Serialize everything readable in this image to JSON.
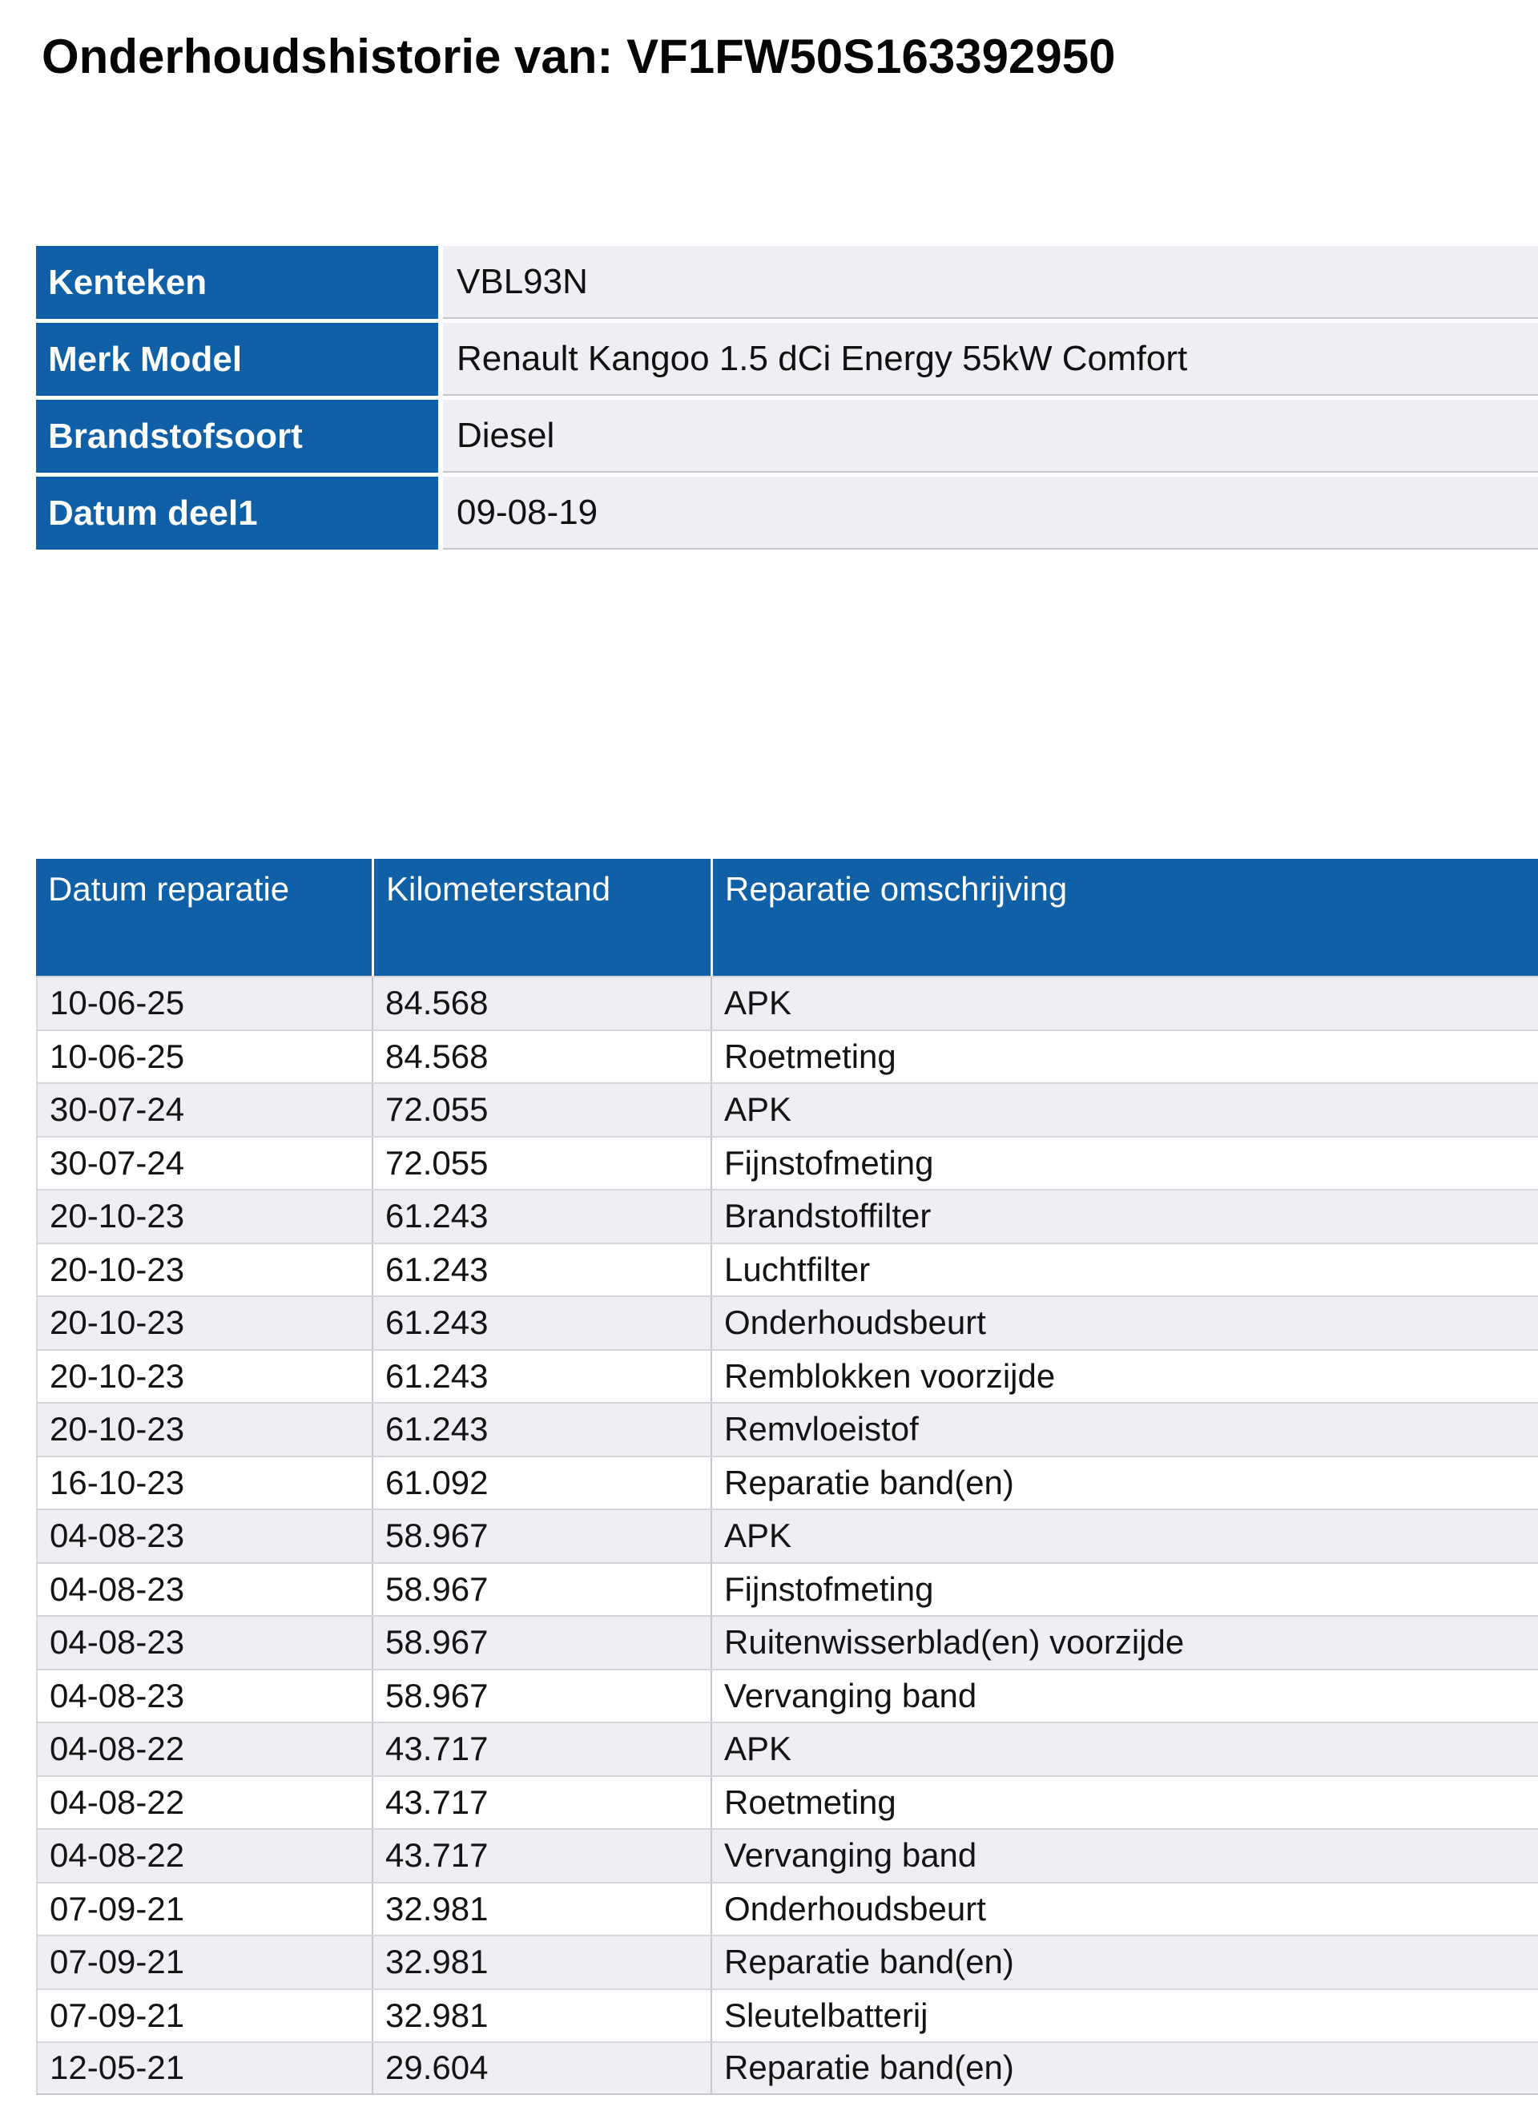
{
  "title": "Onderhoudshistorie van: VF1FW50S163392950",
  "vehicle_info": {
    "rows": [
      {
        "label": "Kenteken",
        "value": "VBL93N"
      },
      {
        "label": "Merk Model",
        "value": "Renault Kangoo 1.5 dCi Energy 55kW Comfort"
      },
      {
        "label": "Brandstofsoort",
        "value": "Diesel"
      },
      {
        "label": "Datum deel1",
        "value": "09-08-19"
      }
    ]
  },
  "history": {
    "columns": {
      "date": "Datum reparatie",
      "km": "Kilometerstand",
      "desc": "Reparatie omschrijving"
    },
    "rows": [
      {
        "date": "10-06-25",
        "km": "84.568",
        "desc": "APK"
      },
      {
        "date": "10-06-25",
        "km": "84.568",
        "desc": "Roetmeting"
      },
      {
        "date": "30-07-24",
        "km": "72.055",
        "desc": "APK"
      },
      {
        "date": "30-07-24",
        "km": "72.055",
        "desc": "Fijnstofmeting"
      },
      {
        "date": "20-10-23",
        "km": "61.243",
        "desc": "Brandstoffilter"
      },
      {
        "date": "20-10-23",
        "km": "61.243",
        "desc": "Luchtfilter"
      },
      {
        "date": "20-10-23",
        "km": "61.243",
        "desc": "Onderhoudsbeurt"
      },
      {
        "date": "20-10-23",
        "km": "61.243",
        "desc": "Remblokken voorzijde"
      },
      {
        "date": "20-10-23",
        "km": "61.243",
        "desc": "Remvloeistof"
      },
      {
        "date": "16-10-23",
        "km": "61.092",
        "desc": "Reparatie band(en)"
      },
      {
        "date": "04-08-23",
        "km": "58.967",
        "desc": "APK"
      },
      {
        "date": "04-08-23",
        "km": "58.967",
        "desc": "Fijnstofmeting"
      },
      {
        "date": "04-08-23",
        "km": "58.967",
        "desc": "Ruitenwisserblad(en) voorzijde"
      },
      {
        "date": "04-08-23",
        "km": "58.967",
        "desc": "Vervanging band"
      },
      {
        "date": "04-08-22",
        "km": "43.717",
        "desc": "APK"
      },
      {
        "date": "04-08-22",
        "km": "43.717",
        "desc": "Roetmeting"
      },
      {
        "date": "04-08-22",
        "km": "43.717",
        "desc": "Vervanging band"
      },
      {
        "date": "07-09-21",
        "km": "32.981",
        "desc": "Onderhoudsbeurt"
      },
      {
        "date": "07-09-21",
        "km": "32.981",
        "desc": "Reparatie band(en)"
      },
      {
        "date": "07-09-21",
        "km": "32.981",
        "desc": "Sleutelbatterij"
      },
      {
        "date": "12-05-21",
        "km": "29.604",
        "desc": "Reparatie band(en)"
      }
    ]
  },
  "colors": {
    "header_blue": "#0F60A6",
    "label_blue": "#0F60A6",
    "row_stripe": "#EFEEF3",
    "info_value_bg": "#EFEEF3",
    "border_gray": "#C9C9D1"
  }
}
